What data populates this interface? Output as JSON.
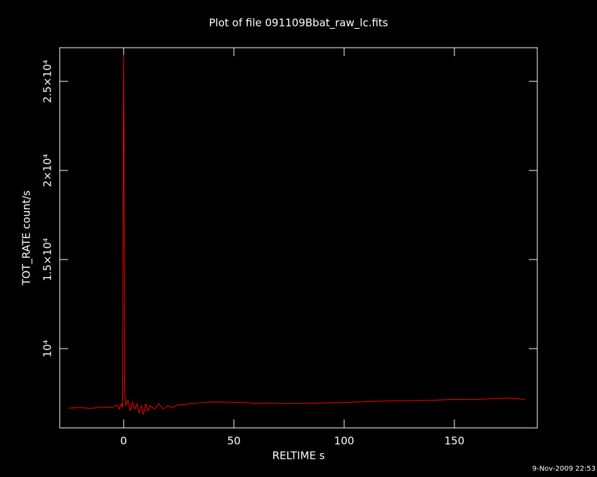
{
  "chart_data": {
    "type": "line",
    "title": "Plot of file 091109Bbat_raw_lc.fits",
    "x_label": "RELTIME  s",
    "y_label": "TOT_RATE  count/s",
    "timestamp": "9-Nov-2009 22:53",
    "x": [
      -25,
      -20,
      -15,
      -10,
      -5,
      -3,
      -2,
      -1,
      -0.5,
      0,
      0.2,
      0.5,
      1,
      2,
      3,
      4,
      5,
      6,
      7,
      8,
      9,
      10,
      11,
      12,
      14,
      16,
      18,
      20,
      22,
      25,
      30,
      35,
      38,
      45,
      55,
      60,
      65,
      70,
      80,
      90,
      100,
      110,
      120,
      130,
      140,
      150,
      160,
      170,
      175,
      182
    ],
    "series": [
      {
        "name": "TOT_RATE",
        "color": "#ff0000",
        "values": [
          6650,
          6700,
          6640,
          6720,
          6700,
          6850,
          6600,
          6900,
          6700,
          26500,
          21700,
          7500,
          6800,
          7100,
          6500,
          7000,
          6600,
          6900,
          6400,
          6800,
          6300,
          6900,
          6500,
          6800,
          6600,
          6900,
          6600,
          6800,
          6700,
          6850,
          6900,
          6950,
          7000,
          7000,
          6980,
          6900,
          6950,
          6920,
          6920,
          6950,
          6980,
          7020,
          7060,
          7080,
          7100,
          7150,
          7150,
          7200,
          7220,
          7150
        ]
      }
    ],
    "xlim": [
      -29,
      187.6
    ],
    "ylim": [
      5550,
      26890
    ],
    "xticks": [
      0,
      50,
      100,
      150
    ],
    "yticks": [
      {
        "value": 10000,
        "label": "10⁴"
      },
      {
        "value": 15000,
        "label": "1.5×10⁴"
      },
      {
        "value": 20000,
        "label": "2×10⁴"
      },
      {
        "value": 25000,
        "label": "2.5×10⁴"
      }
    ]
  }
}
